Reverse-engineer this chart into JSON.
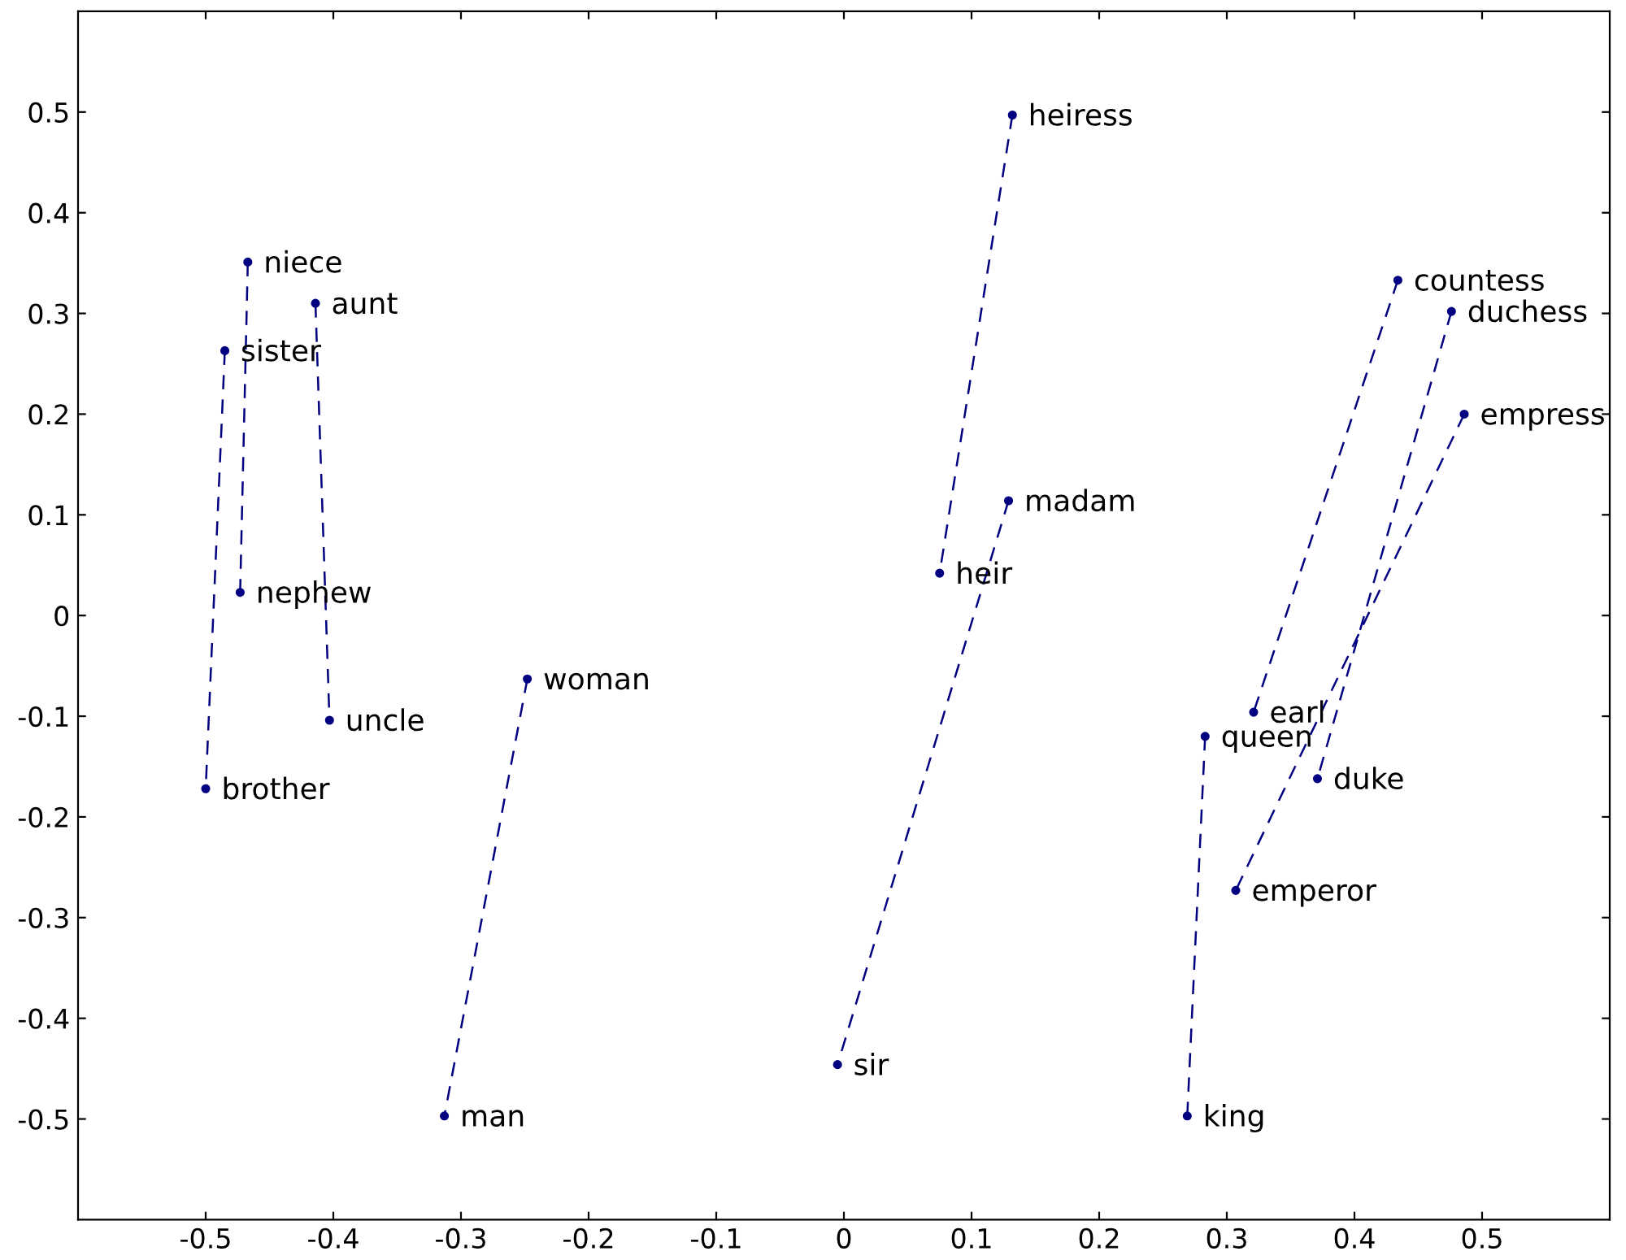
{
  "chart_data": {
    "type": "line",
    "series": [
      {
        "color": "#000080",
        "x": [
          -0.467,
          -0.473
        ],
        "values": [
          0.351,
          0.023
        ]
      },
      {
        "color": "#000080",
        "x": [
          -0.414,
          -0.403
        ],
        "values": [
          0.31,
          -0.104
        ]
      },
      {
        "color": "#000080",
        "x": [
          -0.485,
          -0.5
        ],
        "values": [
          0.263,
          -0.172
        ]
      },
      {
        "color": "#000080",
        "x": [
          -0.248,
          -0.313
        ],
        "values": [
          -0.063,
          -0.497
        ]
      },
      {
        "color": "#000080",
        "x": [
          0.132,
          0.075
        ],
        "values": [
          0.497,
          0.042
        ]
      },
      {
        "color": "#000080",
        "x": [
          0.129,
          -0.005
        ],
        "values": [
          0.114,
          -0.446
        ]
      },
      {
        "color": "#000080",
        "x": [
          0.434,
          0.321
        ],
        "values": [
          0.333,
          -0.096
        ]
      },
      {
        "color": "#000080",
        "x": [
          0.476,
          0.371
        ],
        "values": [
          0.302,
          -0.162
        ]
      },
      {
        "color": "#000080",
        "x": [
          0.486,
          0.307
        ],
        "values": [
          0.2,
          -0.273
        ]
      },
      {
        "color": "#000080",
        "x": [
          0.283,
          0.269
        ],
        "values": [
          -0.12,
          -0.497
        ]
      }
    ],
    "annotations": [
      {
        "text": "niece",
        "x": -0.467,
        "y": 0.351
      },
      {
        "text": "nephew",
        "x": -0.473,
        "y": 0.023
      },
      {
        "text": "aunt",
        "x": -0.414,
        "y": 0.31
      },
      {
        "text": "uncle",
        "x": -0.403,
        "y": -0.104
      },
      {
        "text": "sister",
        "x": -0.485,
        "y": 0.263
      },
      {
        "text": "brother",
        "x": -0.5,
        "y": -0.172
      },
      {
        "text": "woman",
        "x": -0.248,
        "y": -0.063
      },
      {
        "text": "man",
        "x": -0.313,
        "y": -0.497
      },
      {
        "text": "heiress",
        "x": 0.132,
        "y": 0.497
      },
      {
        "text": "heir",
        "x": 0.075,
        "y": 0.042
      },
      {
        "text": "madam",
        "x": 0.129,
        "y": 0.114
      },
      {
        "text": "sir",
        "x": -0.005,
        "y": -0.446
      },
      {
        "text": "countess",
        "x": 0.434,
        "y": 0.333
      },
      {
        "text": "earl",
        "x": 0.321,
        "y": -0.096
      },
      {
        "text": "duchess",
        "x": 0.476,
        "y": 0.302
      },
      {
        "text": "duke",
        "x": 0.371,
        "y": -0.162
      },
      {
        "text": "empress",
        "x": 0.486,
        "y": 0.2
      },
      {
        "text": "emperor",
        "x": 0.307,
        "y": -0.273
      },
      {
        "text": "queen",
        "x": 0.283,
        "y": -0.12
      },
      {
        "text": "king",
        "x": 0.269,
        "y": -0.497
      }
    ],
    "xlim": [
      -0.6,
      0.6
    ],
    "ylim": [
      -0.6,
      0.6
    ],
    "xticks": [
      -0.5,
      -0.4,
      -0.3,
      -0.2,
      -0.1,
      0,
      0.1,
      0.2,
      0.3,
      0.4,
      0.5
    ],
    "yticks": [
      -0.5,
      -0.4,
      -0.3,
      -0.2,
      -0.1,
      0,
      0.1,
      0.2,
      0.3,
      0.4,
      0.5
    ],
    "grid": false,
    "marker": "circle",
    "line_style": "dashed"
  }
}
